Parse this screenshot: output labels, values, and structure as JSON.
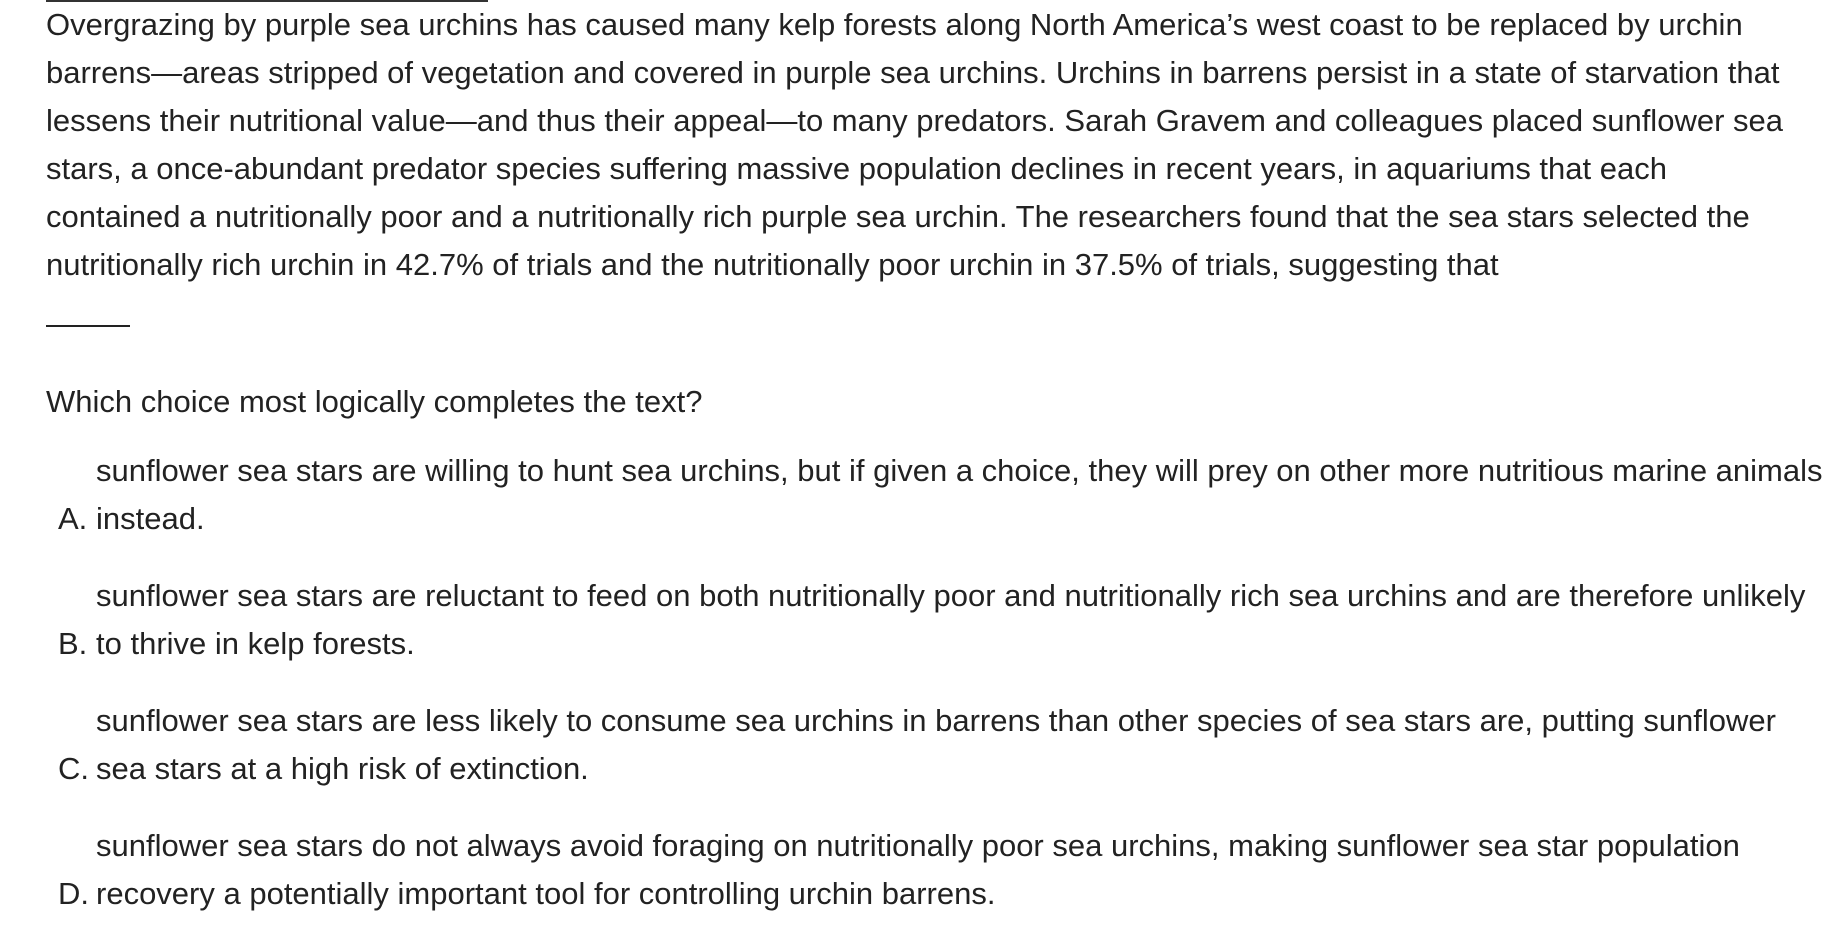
{
  "passage": {
    "text": "Overgrazing by purple sea urchins has caused many kelp forests along North America’s west coast to be replaced by urchin barrens—areas stripped of vegetation and covered in purple sea urchins. Urchins in barrens persist in a state of starvation that lessens their nutritional value—and thus their appeal—to many predators. Sarah Gravem and colleagues placed sunflower sea stars, a once-abundant predator species suffering massive population declines in recent years, in aquariums that each contained a nutritionally poor and a nutritionally rich purple sea urchin. The researchers found that the sea stars selected the nutritionally rich urchin in 42.7% of trials and the nutritionally poor urchin in 37.5% of trials, suggesting that"
  },
  "question": {
    "prompt": "Which choice most logically completes the text?"
  },
  "choices": [
    {
      "letter": "A.",
      "text": "sunflower sea stars are willing to hunt sea urchins, but if given a choice, they will prey on other more nutritious marine animals instead."
    },
    {
      "letter": "B.",
      "text": "sunflower sea stars are reluctant to feed on both nutritionally poor and nutritionally rich sea urchins and are therefore unlikely to thrive in kelp forests."
    },
    {
      "letter": "C.",
      "text": "sunflower sea stars are less likely to consume sea urchins in barrens than other species of sea stars are, putting sunflower sea stars at a high risk of extinction."
    },
    {
      "letter": "D.",
      "text": "sunflower sea stars do not always avoid foraging on nutritionally poor sea urchins, making sunflower sea star population recovery a potentially important tool for controlling urchin barrens."
    }
  ]
}
